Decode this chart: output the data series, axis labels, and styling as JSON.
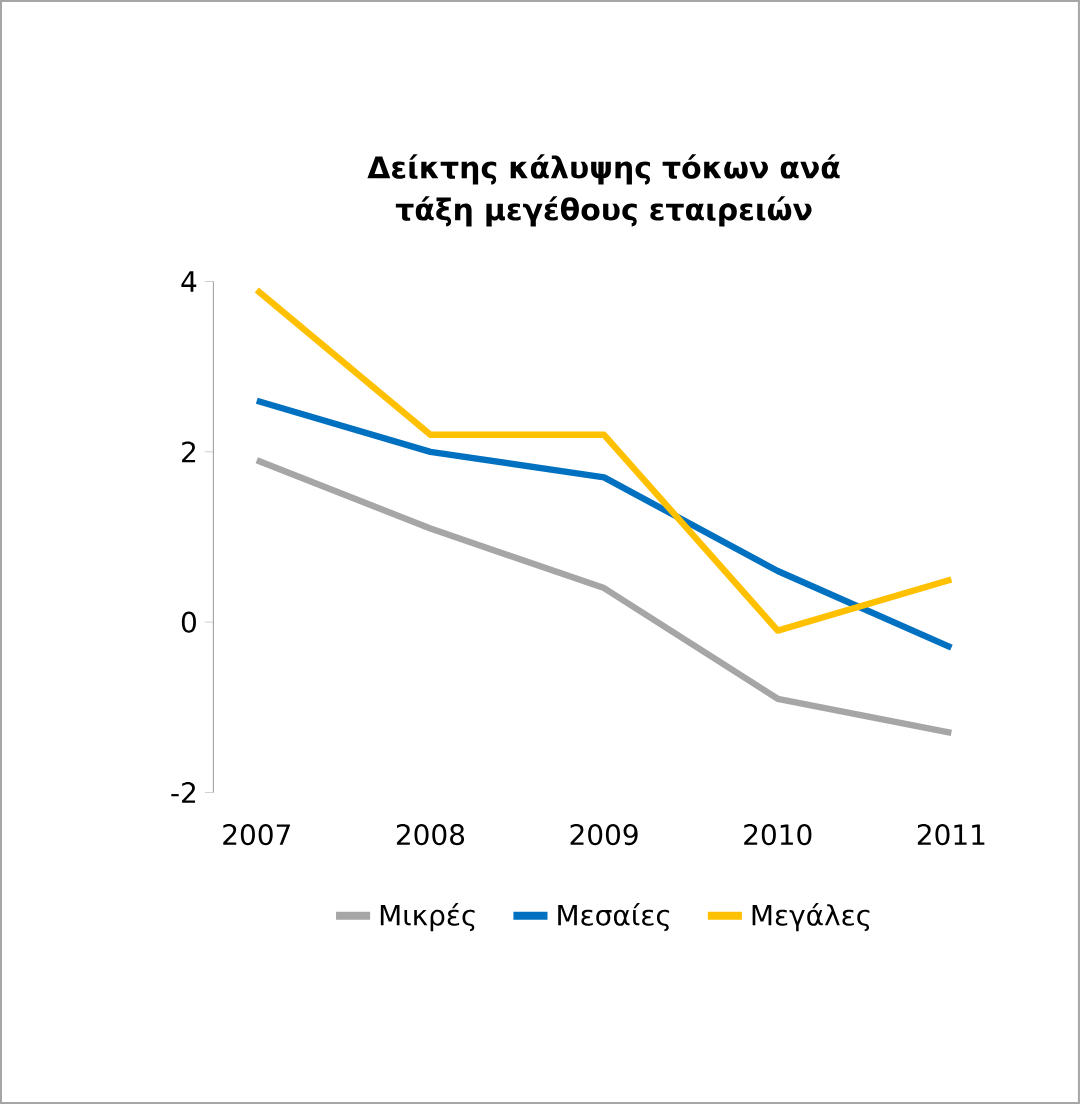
{
  "chart_data": {
    "type": "line",
    "title": "Δείκτης κάλυψης τόκων ανά τάξη μεγέθους εταιρειών",
    "categories": [
      "2007",
      "2008",
      "2009",
      "2010",
      "2011"
    ],
    "series": [
      {
        "name": "Μικρές",
        "color": "#a6a6a6",
        "values": [
          1.9,
          1.1,
          0.4,
          -0.9,
          -1.3
        ]
      },
      {
        "name": "Μεσαίες",
        "color": "#0070c0",
        "values": [
          2.6,
          2.0,
          1.7,
          0.6,
          -0.3
        ]
      },
      {
        "name": "Μεγάλες",
        "color": "#ffc000",
        "values": [
          3.9,
          2.2,
          2.2,
          -0.1,
          0.5
        ]
      }
    ],
    "ylim": [
      -2,
      4
    ],
    "yticks": [
      -2,
      0,
      2,
      4
    ],
    "grid": false,
    "legend": "bottom"
  }
}
